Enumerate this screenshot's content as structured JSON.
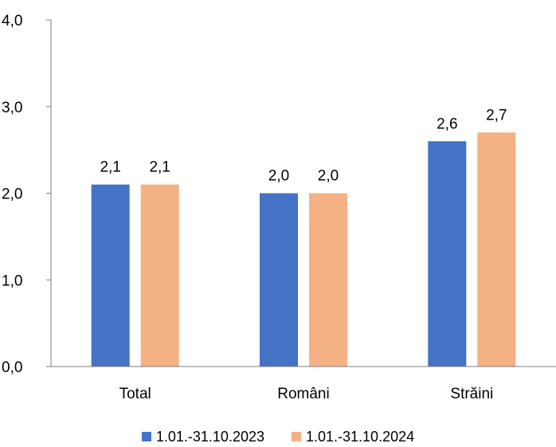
{
  "chart_data": {
    "type": "bar",
    "categories": [
      "Total",
      "Români",
      "Străini"
    ],
    "series": [
      {
        "name": "1.01.-31.10.2023",
        "values": [
          2.1,
          2.0,
          2.6
        ],
        "labels": [
          "2,1",
          "2,0",
          "2,6"
        ],
        "color": "#4472C4"
      },
      {
        "name": "1.01.-31.10.2024",
        "values": [
          2.1,
          2.0,
          2.7
        ],
        "labels": [
          "2,1",
          "2,0",
          "2,7"
        ],
        "color": "#F4B183"
      }
    ],
    "yticks": [
      0,
      1,
      2,
      3,
      4
    ],
    "ytick_labels": [
      "0,0",
      "1,0",
      "2,0",
      "3,0",
      "4,0"
    ],
    "ylim": [
      0,
      4
    ],
    "title": "",
    "xlabel": "",
    "ylabel": "",
    "grid": false,
    "legend_position": "bottom"
  }
}
